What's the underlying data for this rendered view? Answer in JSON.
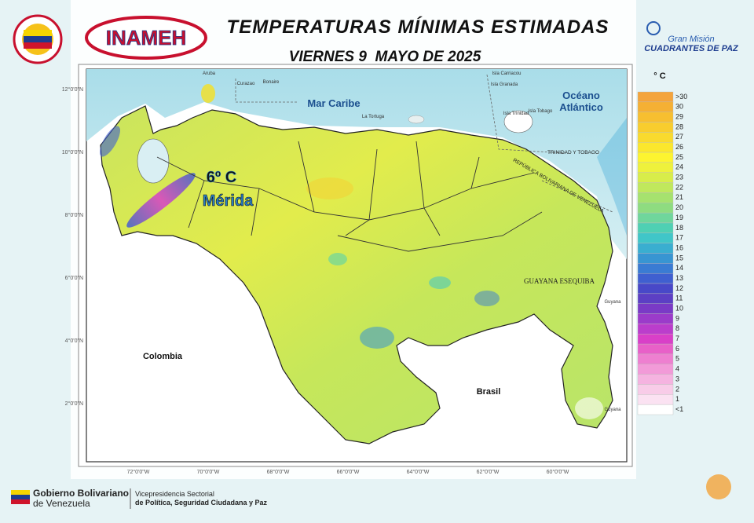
{
  "header": {
    "title": "TEMPERATURAS MÍNIMAS ESTIMADAS",
    "date": "VIERNES 9  MAYO DE 2025",
    "left_logo": "INAMEH",
    "right_logo_line1": "Gran Misión",
    "right_logo_line2": "CUADRANTES DE PAZ"
  },
  "map": {
    "labels": {
      "sea": "Mar Caribe",
      "ocean_line1": "Océano",
      "ocean_line2": "Atlántico",
      "colombia": "Colombia",
      "brasil": "Brasil",
      "esequiba": "GUAYANA ESEQUIBA",
      "guyana_north": "Guyana",
      "guyana_south": "Guyana",
      "trinidad": "TRINIDAD Y TOBAGO",
      "venezuela": "REPÚBLICA BOLIVARIANA DE VENEZUELA",
      "aruba": "Aruba",
      "curazao": "Curazao",
      "bonaire": "Bonaire",
      "isla_trinidad": "Isla Trinidad",
      "isla_tobago": "Isla Tobago",
      "isla_granada": "Isla Granada",
      "isla_carriacou": "Isla Carriacou",
      "la_tortuga": "La Tortuga"
    },
    "highlight": {
      "value": "6º C",
      "place": "Mérida"
    },
    "lat_labels": [
      "12°0'0\"N",
      "10°0'0\"N",
      "8°0'0\"N",
      "6°0'0\"N",
      "4°0'0\"N",
      "2°0'0\"N"
    ],
    "lon_labels": [
      "72°0'0\"W",
      "70°0'0\"W",
      "68°0'0\"W",
      "66°0'0\"W",
      "64°0'0\"W",
      "62°0'0\"W",
      "60°0'0\"W"
    ]
  },
  "legend": {
    "unit": "° C",
    "items": [
      {
        "label": ">30",
        "color": "#f4a43c"
      },
      {
        "label": "30",
        "color": "#f5b034"
      },
      {
        "label": "29",
        "color": "#f7bf30"
      },
      {
        "label": "28",
        "color": "#f8cd2e"
      },
      {
        "label": "27",
        "color": "#f9da2e"
      },
      {
        "label": "26",
        "color": "#fbe72d"
      },
      {
        "label": "25",
        "color": "#fdf430"
      },
      {
        "label": "24",
        "color": "#eef13c"
      },
      {
        "label": "23",
        "color": "#d8ed4a"
      },
      {
        "label": "22",
        "color": "#c0e85c"
      },
      {
        "label": "21",
        "color": "#a6e26e"
      },
      {
        "label": "20",
        "color": "#8edc80"
      },
      {
        "label": "19",
        "color": "#6fd69c"
      },
      {
        "label": "18",
        "color": "#4fd0b3"
      },
      {
        "label": "17",
        "color": "#40c6c8"
      },
      {
        "label": "16",
        "color": "#3aaed0"
      },
      {
        "label": "15",
        "color": "#3895d2"
      },
      {
        "label": "14",
        "color": "#3a7bd3"
      },
      {
        "label": "13",
        "color": "#3f5fd0"
      },
      {
        "label": "12",
        "color": "#4848c8"
      },
      {
        "label": "11",
        "color": "#5c3fc4"
      },
      {
        "label": "10",
        "color": "#7a3ac6"
      },
      {
        "label": "9",
        "color": "#9b3bca"
      },
      {
        "label": "8",
        "color": "#bb3dcc"
      },
      {
        "label": "7",
        "color": "#d93fc8"
      },
      {
        "label": "6",
        "color": "#e860c8"
      },
      {
        "label": "5",
        "color": "#ee7fd0"
      },
      {
        "label": "4",
        "color": "#f29ad8"
      },
      {
        "label": "3",
        "color": "#f5b3e0"
      },
      {
        "label": "2",
        "color": "#f8cce8"
      },
      {
        "label": "1",
        "color": "#fbe2f2"
      },
      {
        "label": "<1",
        "color": "#ffffff"
      }
    ]
  },
  "footer": {
    "gov_line1": "Gobierno Bolivariano",
    "gov_line2": "de Venezuela",
    "vice_line1": "Vicepresidencia Sectorial",
    "vice_line2": "de Política, Seguridad Ciudadana y Paz"
  }
}
